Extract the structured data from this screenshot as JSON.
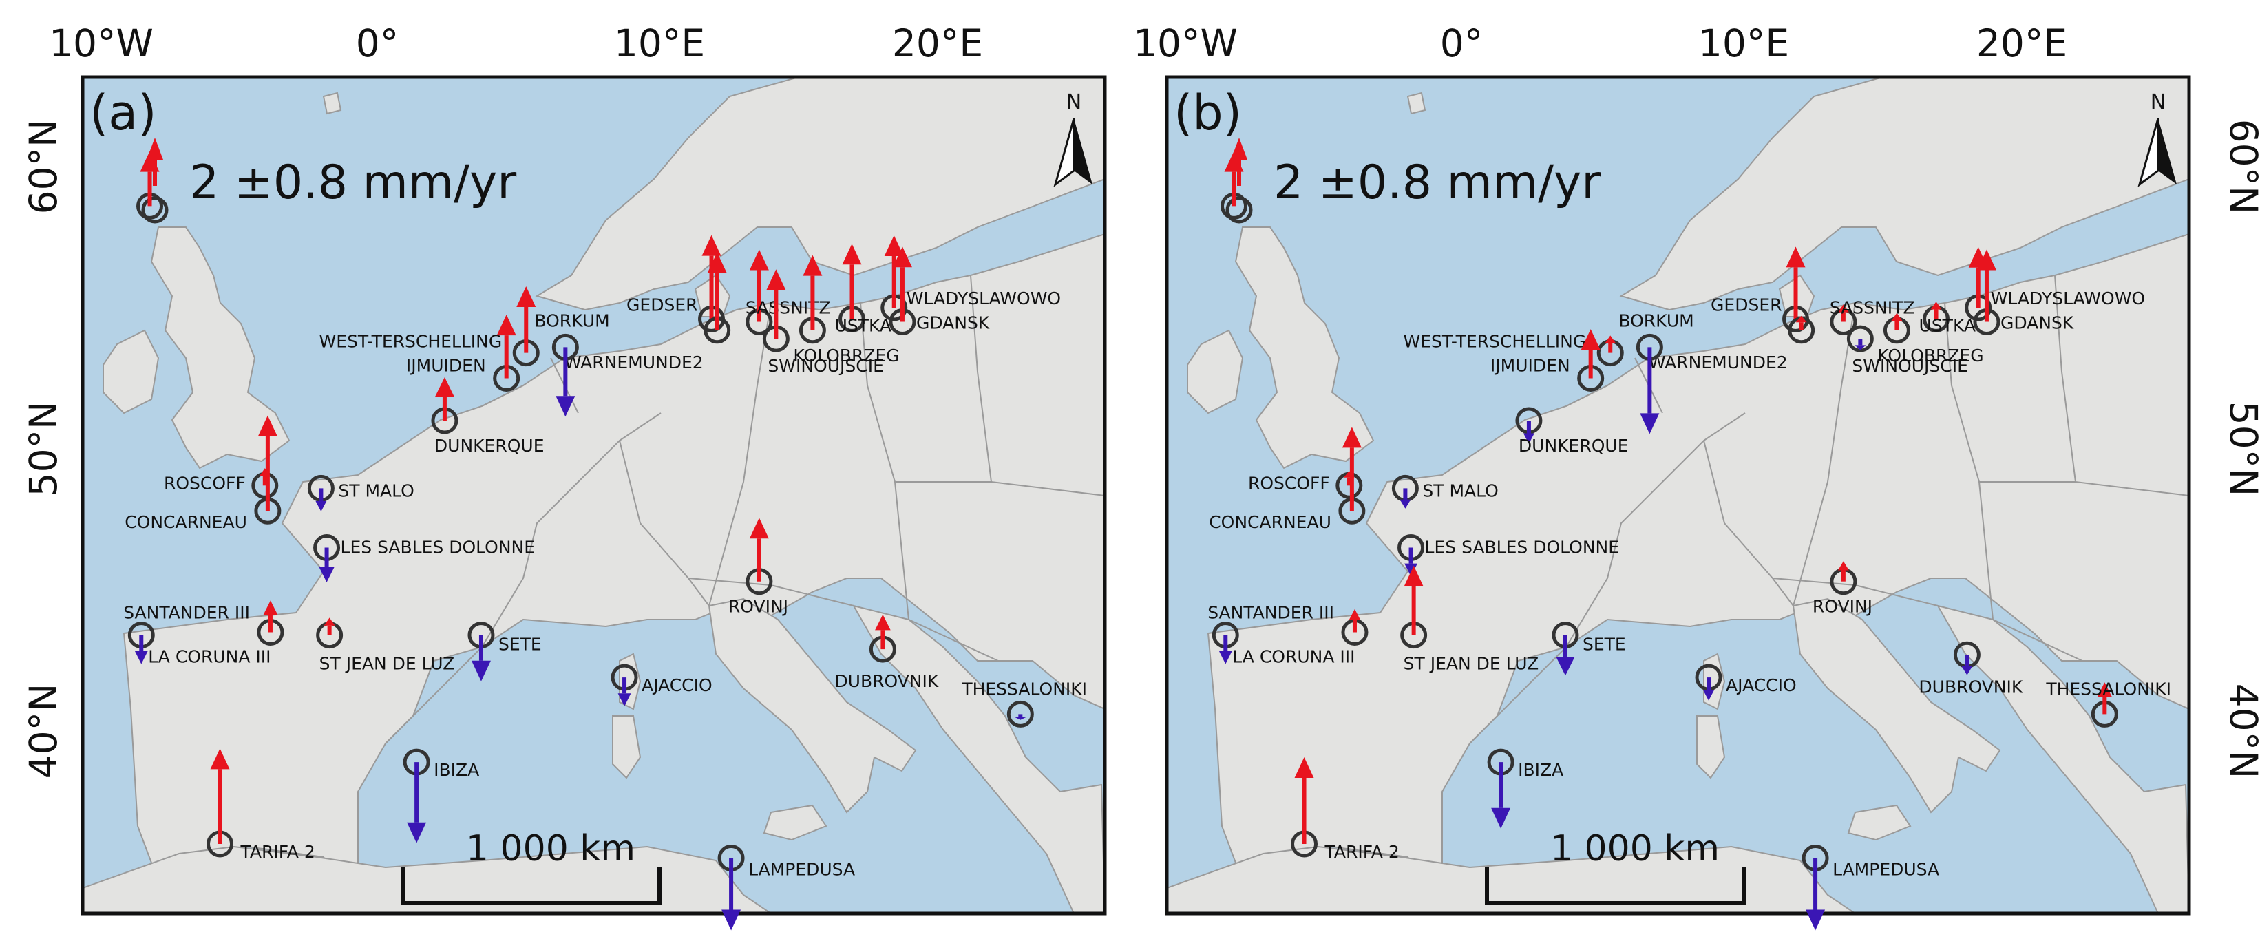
{
  "colors": {
    "uplift": "#e8141e",
    "subsidence": "#3a16b4",
    "sea": "#b5d2e6",
    "sea_deep": "#8fb8d8",
    "land": "#e3e3e1",
    "border": "#9a9a9a"
  },
  "axes": {
    "lon_ticks": [
      "10°W",
      "0°",
      "10°E",
      "20°E"
    ],
    "lat_ticks": [
      "60°N",
      "50°N",
      "40°N"
    ]
  },
  "panels": [
    {
      "letter": "(a)",
      "legend": "2 ±0.8 mm/yr",
      "scalebar": "1 000 km",
      "north": "N",
      "stations": [
        {
          "name": "",
          "lon": -8.1,
          "lat": 58.6,
          "rate": 1.9
        },
        {
          "name": "GEDSER",
          "lon": 11.9,
          "lat": 54.6,
          "rate": 2.9
        },
        {
          "name": "WARNEMUNDE2",
          "lon": 12.1,
          "lat": 54.2,
          "rate": 2.7
        },
        {
          "name": "SASSNITZ",
          "lon": 13.6,
          "lat": 54.5,
          "rate": 2.5
        },
        {
          "name": "SWINOUJSCIE",
          "lon": 14.2,
          "lat": 53.9,
          "rate": 2.4
        },
        {
          "name": "KOLOBRZEG",
          "lon": 15.5,
          "lat": 54.2,
          "rate": 2.6
        },
        {
          "name": "USTKA",
          "lon": 16.9,
          "lat": 54.6,
          "rate": 2.6
        },
        {
          "name": "WLADYSLAWOWO",
          "lon": 18.4,
          "lat": 55.0,
          "rate": 2.5
        },
        {
          "name": "GDANSK",
          "lon": 18.7,
          "lat": 54.5,
          "rate": 2.6
        },
        {
          "name": "WEST-TERSCHELLING",
          "lon": 5.3,
          "lat": 53.4,
          "rate": 2.3
        },
        {
          "name": "IJMUIDEN",
          "lon": 4.6,
          "lat": 52.5,
          "rate": 2.2
        },
        {
          "name": "BORKUM",
          "lon": 6.7,
          "lat": 53.6,
          "rate": -2.4
        },
        {
          "name": "DUNKERQUE",
          "lon": 2.4,
          "lat": 51.0,
          "rate": 1.5
        },
        {
          "name": "ROSCOFF",
          "lon": -4.0,
          "lat": 48.7,
          "rate": 0.6
        },
        {
          "name": "CONCARNEAU",
          "lon": -3.9,
          "lat": 47.8,
          "rate": 3.3
        },
        {
          "name": "ST MALO",
          "lon": -2.0,
          "lat": 48.6,
          "rate": -0.8
        },
        {
          "name": "LES SABLES DOLONNE",
          "lon": -1.8,
          "lat": 46.5,
          "rate": -1.2
        },
        {
          "name": "SANTANDER III",
          "lon": -3.8,
          "lat": 43.5,
          "rate": 1.1
        },
        {
          "name": "ST JEAN DE LUZ",
          "lon": -1.7,
          "lat": 43.4,
          "rate": 0.6
        },
        {
          "name": "LA CORUNA III",
          "lon": -8.4,
          "lat": 43.4,
          "rate": -1.0
        },
        {
          "name": "SETE",
          "lon": 3.7,
          "lat": 43.4,
          "rate": -1.6
        },
        {
          "name": "ROVINJ",
          "lon": 13.6,
          "lat": 45.3,
          "rate": 2.2
        },
        {
          "name": "DUBROVNIK",
          "lon": 18.0,
          "lat": 42.9,
          "rate": 1.2
        },
        {
          "name": "AJACCIO",
          "lon": 8.8,
          "lat": 41.9,
          "rate": -1.0
        },
        {
          "name": "THESSALONIKI",
          "lon": 22.9,
          "lat": 40.6,
          "rate": -0.2
        },
        {
          "name": "IBIZA",
          "lon": 1.4,
          "lat": 38.9,
          "rate": -2.8
        },
        {
          "name": "TARIFA 2",
          "lon": -5.6,
          "lat": 36.0,
          "rate": 3.3
        },
        {
          "name": "LAMPEDUSA",
          "lon": 12.6,
          "lat": 35.5,
          "rate": -2.5
        }
      ]
    },
    {
      "letter": "(b)",
      "legend": "2 ±0.8 mm/yr",
      "scalebar": "1 000 km",
      "north": "N",
      "stations": [
        {
          "name": "",
          "lon": -8.1,
          "lat": 58.6,
          "rate": 1.9
        },
        {
          "name": "GEDSER",
          "lon": 11.9,
          "lat": 54.6,
          "rate": 2.5
        },
        {
          "name": "WARNEMUNDE2",
          "lon": 12.1,
          "lat": 54.2,
          "rate": 0.5
        },
        {
          "name": "SASSNITZ",
          "lon": 13.6,
          "lat": 54.5,
          "rate": 0.6
        },
        {
          "name": "SWINOUJSCIE",
          "lon": 14.2,
          "lat": 53.9,
          "rate": -0.4
        },
        {
          "name": "KOLOBRZEG",
          "lon": 15.5,
          "lat": 54.2,
          "rate": 0.6
        },
        {
          "name": "USTKA",
          "lon": 16.9,
          "lat": 54.6,
          "rate": 0.6
        },
        {
          "name": "WLADYSLAWOWO",
          "lon": 18.4,
          "lat": 55.0,
          "rate": 2.1
        },
        {
          "name": "GDANSK",
          "lon": 18.7,
          "lat": 54.5,
          "rate": 2.5
        },
        {
          "name": "WEST-TERSCHELLING",
          "lon": 5.3,
          "lat": 53.4,
          "rate": 0.6
        },
        {
          "name": "IJMUIDEN",
          "lon": 4.6,
          "lat": 52.5,
          "rate": 1.7
        },
        {
          "name": "BORKUM",
          "lon": 6.7,
          "lat": 53.6,
          "rate": -3.0
        },
        {
          "name": "DUNKERQUE",
          "lon": 2.4,
          "lat": 51.0,
          "rate": -0.8
        },
        {
          "name": "ROSCOFF",
          "lon": -4.0,
          "lat": 48.7,
          "rate": 0.5
        },
        {
          "name": "CONCARNEAU",
          "lon": -3.9,
          "lat": 47.8,
          "rate": 2.9
        },
        {
          "name": "ST MALO",
          "lon": -2.0,
          "lat": 48.6,
          "rate": -0.7
        },
        {
          "name": "LES SABLES DOLONNE",
          "lon": -1.8,
          "lat": 46.5,
          "rate": -1.0
        },
        {
          "name": "SANTANDER III",
          "lon": -3.8,
          "lat": 43.5,
          "rate": 0.8
        },
        {
          "name": "ST JEAN DE LUZ",
          "lon": -1.7,
          "lat": 43.4,
          "rate": 2.4
        },
        {
          "name": "LA CORUNA III",
          "lon": -8.4,
          "lat": 43.4,
          "rate": -1.0
        },
        {
          "name": "SETE",
          "lon": 3.7,
          "lat": 43.4,
          "rate": -1.4
        },
        {
          "name": "ROVINJ",
          "lon": 13.6,
          "lat": 45.3,
          "rate": 0.7
        },
        {
          "name": "DUBROVNIK",
          "lon": 18.0,
          "lat": 42.7,
          "rate": -0.7
        },
        {
          "name": "AJACCIO",
          "lon": 8.8,
          "lat": 41.9,
          "rate": -0.8
        },
        {
          "name": "THESSALONIKI",
          "lon": 22.9,
          "lat": 40.6,
          "rate": 1.1
        },
        {
          "name": "IBIZA",
          "lon": 1.4,
          "lat": 38.9,
          "rate": -2.3
        },
        {
          "name": "TARIFA 2",
          "lon": -5.6,
          "lat": 36.0,
          "rate": 3.0
        },
        {
          "name": "LAMPEDUSA",
          "lon": 12.6,
          "lat": 35.5,
          "rate": -2.5
        }
      ]
    }
  ]
}
